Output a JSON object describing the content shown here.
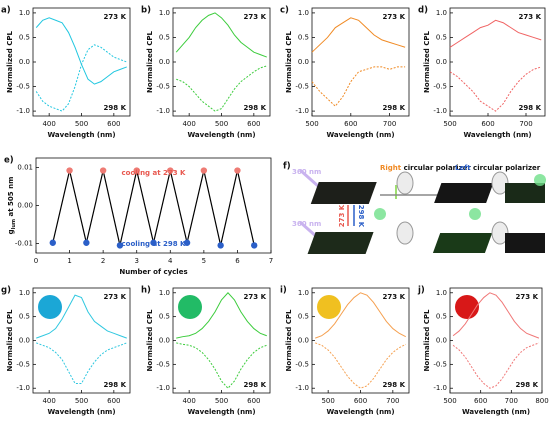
{
  "chart_data": [
    {
      "type": "line",
      "label": "a)",
      "ylabel": "Normalized CPL",
      "xlabel": "Wavelength (nm)",
      "xlim": [
        350,
        650
      ],
      "xticks": [
        400,
        500,
        600
      ],
      "ylim": [
        -1.1,
        1.1
      ],
      "yticks": [
        {
          "value": -1,
          "label": "-1.0"
        },
        -0.5,
        {
          "value": 0,
          "label": "0.0"
        },
        0.5,
        {
          "value": 1,
          "label": "1.0"
        }
      ],
      "x": [
        360,
        380,
        400,
        420,
        440,
        460,
        480,
        500,
        520,
        540,
        560,
        580,
        600,
        620,
        640
      ],
      "series": [
        {
          "name": "273 K",
          "color": "#22c7e0",
          "dashed": false,
          "values": [
            0.7,
            0.85,
            0.9,
            0.85,
            0.8,
            0.6,
            0.3,
            -0.05,
            -0.35,
            -0.45,
            -0.4,
            -0.3,
            -0.2,
            -0.15,
            -0.1
          ]
        },
        {
          "name": "298 K",
          "color": "#22c7e0",
          "dashed": true,
          "values": [
            -0.6,
            -0.8,
            -0.9,
            -0.95,
            -1.0,
            -0.85,
            -0.5,
            -0.05,
            0.25,
            0.35,
            0.3,
            0.2,
            0.1,
            0.05,
            0.0
          ]
        }
      ]
    },
    {
      "type": "line",
      "label": "b)",
      "ylabel": "Normalized CPL",
      "xlabel": "Wavelength (nm)",
      "xlim": [
        350,
        650
      ],
      "xticks": [
        400,
        500,
        600
      ],
      "ylim": [
        -1.1,
        1.1
      ],
      "yticks": [
        {
          "value": -1,
          "label": "-1.0"
        },
        -0.5,
        {
          "value": 0,
          "label": "0.0"
        },
        0.5,
        {
          "value": 1,
          "label": "1.0"
        }
      ],
      "x": [
        360,
        380,
        400,
        420,
        440,
        460,
        480,
        500,
        520,
        540,
        560,
        580,
        600,
        620,
        640
      ],
      "series": [
        {
          "name": "273 K",
          "color": "#3ccc3c",
          "dashed": false,
          "values": [
            0.2,
            0.35,
            0.5,
            0.7,
            0.85,
            0.95,
            1.0,
            0.9,
            0.75,
            0.55,
            0.4,
            0.3,
            0.2,
            0.15,
            0.1
          ]
        },
        {
          "name": "298 K",
          "color": "#3ccc3c",
          "dashed": true,
          "values": [
            -0.35,
            -0.4,
            -0.5,
            -0.65,
            -0.8,
            -0.9,
            -1.0,
            -0.95,
            -0.75,
            -0.55,
            -0.4,
            -0.3,
            -0.2,
            -0.12,
            -0.08
          ]
        }
      ]
    },
    {
      "type": "line",
      "label": "c)",
      "ylabel": "Normalized CPL",
      "xlabel": "Wavelength (nm)",
      "xlim": [
        500,
        750
      ],
      "xticks": [
        500,
        600,
        700
      ],
      "ylim": [
        -1.1,
        1.1
      ],
      "yticks": [
        {
          "value": -1,
          "label": "-1.0"
        },
        -0.5,
        {
          "value": 0,
          "label": "0.0"
        },
        0.5,
        {
          "value": 1,
          "label": "1.0"
        }
      ],
      "x": [
        500,
        520,
        540,
        560,
        580,
        600,
        620,
        640,
        660,
        680,
        700,
        720,
        740
      ],
      "series": [
        {
          "name": "273 K",
          "color": "#f08a24",
          "dashed": false,
          "values": [
            0.2,
            0.35,
            0.5,
            0.7,
            0.8,
            0.9,
            0.85,
            0.7,
            0.55,
            0.45,
            0.4,
            0.35,
            0.3
          ]
        },
        {
          "name": "298 K",
          "color": "#f08a24",
          "dashed": true,
          "values": [
            -0.4,
            -0.6,
            -0.75,
            -0.9,
            -0.7,
            -0.4,
            -0.2,
            -0.15,
            -0.1,
            -0.1,
            -0.15,
            -0.1,
            -0.1
          ]
        }
      ]
    },
    {
      "type": "line",
      "label": "d)",
      "ylabel": "Normalized CPL",
      "xlabel": "Wavelength (nm)",
      "xlim": [
        500,
        750
      ],
      "xticks": [
        500,
        600,
        700
      ],
      "ylim": [
        -1.1,
        1.1
      ],
      "yticks": [
        {
          "value": -1,
          "label": "-1.0"
        },
        -0.5,
        {
          "value": 0,
          "label": "0.0"
        },
        0.5,
        {
          "value": 1,
          "label": "1.0"
        }
      ],
      "x": [
        500,
        520,
        540,
        560,
        580,
        600,
        620,
        640,
        660,
        680,
        700,
        720,
        740
      ],
      "series": [
        {
          "name": "273 K",
          "color": "#f06464",
          "dashed": false,
          "values": [
            0.3,
            0.4,
            0.5,
            0.6,
            0.7,
            0.75,
            0.85,
            0.8,
            0.7,
            0.6,
            0.55,
            0.5,
            0.45
          ]
        },
        {
          "name": "298 K",
          "color": "#f06464",
          "dashed": true,
          "values": [
            -0.2,
            -0.3,
            -0.45,
            -0.6,
            -0.8,
            -0.9,
            -1.0,
            -0.85,
            -0.6,
            -0.4,
            -0.25,
            -0.15,
            -0.1
          ]
        }
      ]
    },
    {
      "type": "cycles",
      "label": "e)",
      "ylabel": {
        "main": "g",
        "sub": "lum",
        "rest": " at 505 nm"
      },
      "xlabel": "Number of cycles",
      "xlim": [
        0,
        7
      ],
      "xticks": [
        0,
        1,
        2,
        3,
        4,
        5,
        6,
        7
      ],
      "ylim": [
        -0.0125,
        0.0125
      ],
      "yticks": [
        {
          "value": -0.01,
          "label": "-0.01"
        },
        {
          "value": 0,
          "label": "0.00"
        },
        {
          "value": 0.01,
          "label": "0.01"
        }
      ],
      "annotations": [
        {
          "text": "cooling at 273 K",
          "color": "#e8584f"
        },
        {
          "text": "cooling at 298 K",
          "color": "#2b5fc8"
        }
      ],
      "line_color": "#000000",
      "x": [
        0.5,
        1,
        1.5,
        2,
        2.5,
        3,
        3.5,
        4,
        4.5,
        5,
        5.5,
        6,
        6.5
      ],
      "values": [
        -0.0098,
        0.0092,
        -0.0098,
        0.0092,
        -0.0105,
        0.0092,
        -0.0098,
        0.0092,
        -0.0098,
        0.0092,
        -0.0105,
        0.0092,
        -0.0105
      ],
      "marker_colors": [
        "#2b5fc8",
        "#ee7b74",
        "#2b5fc8",
        "#ee7b74",
        "#2b5fc8",
        "#ee7b74",
        "#2b5fc8",
        "#ee7b74",
        "#2b5fc8",
        "#ee7b74",
        "#2b5fc8",
        "#ee7b74",
        "#2b5fc8"
      ]
    },
    {
      "type": "line",
      "label": "g)",
      "ylabel": "Normalized CPL",
      "xlabel": "Wavelength (nm)",
      "inset_color": "#1ba7d6",
      "xlim": [
        350,
        650
      ],
      "xticks": [
        400,
        500,
        600
      ],
      "ylim": [
        -1.1,
        1.1
      ],
      "yticks": [
        {
          "value": -1,
          "label": "-1.0"
        },
        -0.5,
        {
          "value": 0,
          "label": "0.0"
        },
        0.5,
        {
          "value": 1,
          "label": "1.0"
        }
      ],
      "x": [
        360,
        380,
        400,
        420,
        440,
        460,
        480,
        500,
        520,
        540,
        560,
        580,
        600,
        620,
        640
      ],
      "series": [
        {
          "name": "273 K",
          "color": "#30c8e0",
          "dashed": false,
          "values": [
            0.05,
            0.1,
            0.15,
            0.25,
            0.45,
            0.7,
            0.95,
            0.9,
            0.6,
            0.4,
            0.3,
            0.2,
            0.15,
            0.1,
            0.05
          ]
        },
        {
          "name": "298 K",
          "color": "#30c8e0",
          "dashed": true,
          "values": [
            -0.05,
            -0.1,
            -0.15,
            -0.25,
            -0.4,
            -0.65,
            -0.9,
            -0.9,
            -0.65,
            -0.45,
            -0.3,
            -0.2,
            -0.15,
            -0.1,
            -0.05
          ]
        }
      ]
    },
    {
      "type": "line",
      "label": "h)",
      "ylabel": "Normalized CPL",
      "xlabel": "Wavelength (nm)",
      "inset_color": "#22bb66",
      "xlim": [
        350,
        650
      ],
      "xticks": [
        400,
        500,
        600
      ],
      "ylim": [
        -1.1,
        1.1
      ],
      "yticks": [
        {
          "value": -1,
          "label": "-1.0"
        },
        -0.5,
        {
          "value": 0,
          "label": "0.0"
        },
        0.5,
        {
          "value": 1,
          "label": "1.0"
        }
      ],
      "x": [
        360,
        380,
        400,
        420,
        440,
        460,
        480,
        500,
        520,
        540,
        560,
        580,
        600,
        620,
        640
      ],
      "series": [
        {
          "name": "273 K",
          "color": "#3ccc3c",
          "dashed": false,
          "values": [
            0.05,
            0.08,
            0.1,
            0.15,
            0.25,
            0.4,
            0.6,
            0.85,
            1.0,
            0.85,
            0.6,
            0.4,
            0.25,
            0.15,
            0.1
          ]
        },
        {
          "name": "298 K",
          "color": "#3ccc3c",
          "dashed": true,
          "values": [
            -0.05,
            -0.08,
            -0.1,
            -0.15,
            -0.25,
            -0.4,
            -0.6,
            -0.85,
            -1.0,
            -0.85,
            -0.6,
            -0.4,
            -0.25,
            -0.15,
            -0.1
          ]
        }
      ]
    },
    {
      "type": "line",
      "label": "i)",
      "ylabel": "Normalized CPL",
      "xlabel": "Wavelength (nm)",
      "inset_color": "#f0c020",
      "xlim": [
        450,
        750
      ],
      "xticks": [
        500,
        600,
        700
      ],
      "ylim": [
        -1.1,
        1.1
      ],
      "yticks": [
        {
          "value": -1,
          "label": "-1.0"
        },
        -0.5,
        {
          "value": 0,
          "label": "0.0"
        },
        0.5,
        {
          "value": 1,
          "label": "1.0"
        }
      ],
      "x": [
        460,
        480,
        500,
        520,
        540,
        560,
        580,
        600,
        620,
        640,
        660,
        680,
        700,
        720,
        740
      ],
      "series": [
        {
          "name": "273 K",
          "color": "#f5a050",
          "dashed": false,
          "values": [
            0.05,
            0.1,
            0.2,
            0.35,
            0.55,
            0.75,
            0.9,
            1.0,
            0.95,
            0.8,
            0.6,
            0.4,
            0.25,
            0.15,
            0.08
          ]
        },
        {
          "name": "298 K",
          "color": "#f5a050",
          "dashed": true,
          "values": [
            -0.05,
            -0.1,
            -0.2,
            -0.35,
            -0.55,
            -0.75,
            -0.9,
            -1.0,
            -0.95,
            -0.8,
            -0.6,
            -0.4,
            -0.25,
            -0.15,
            -0.08
          ]
        }
      ]
    },
    {
      "type": "line",
      "label": "j)",
      "ylabel": "Normalized CPL",
      "xlabel": "Wavelength (nm)",
      "inset_color": "#d81818",
      "xlim": [
        500,
        800
      ],
      "xticks": [
        500,
        600,
        700,
        800
      ],
      "ylim": [
        -1.1,
        1.1
      ],
      "yticks": [
        {
          "value": -1,
          "label": "-1.0"
        },
        -0.5,
        {
          "value": 0,
          "label": "0.0"
        },
        0.5,
        {
          "value": 1,
          "label": "1.0"
        }
      ],
      "x": [
        510,
        530,
        550,
        570,
        590,
        610,
        630,
        650,
        670,
        690,
        710,
        730,
        750,
        770,
        790
      ],
      "series": [
        {
          "name": "273 K",
          "color": "#f07878",
          "dashed": false,
          "values": [
            0.1,
            0.2,
            0.35,
            0.55,
            0.75,
            0.9,
            1.0,
            0.95,
            0.8,
            0.6,
            0.4,
            0.25,
            0.15,
            0.1,
            0.05
          ]
        },
        {
          "name": "298 K",
          "color": "#f07878",
          "dashed": true,
          "values": [
            -0.1,
            -0.2,
            -0.35,
            -0.55,
            -0.75,
            -0.9,
            -1.0,
            -0.95,
            -0.8,
            -0.6,
            -0.4,
            -0.25,
            -0.15,
            -0.1,
            -0.05
          ]
        }
      ]
    }
  ],
  "diagram": {
    "label": "f)",
    "excitation": [
      "360 nm",
      "360 nm"
    ],
    "polarizers": [
      {
        "word": "Right",
        "rest": " circular polarizer",
        "color": "#f08a24"
      },
      {
        "word": "Left",
        "rest": " circular polarizer",
        "color": "#2b5fc8"
      }
    ],
    "temperatures": [
      {
        "text": "273 K",
        "color": "#e8584f"
      },
      {
        "text": "298 K",
        "color": "#2b5fc8"
      }
    ]
  }
}
